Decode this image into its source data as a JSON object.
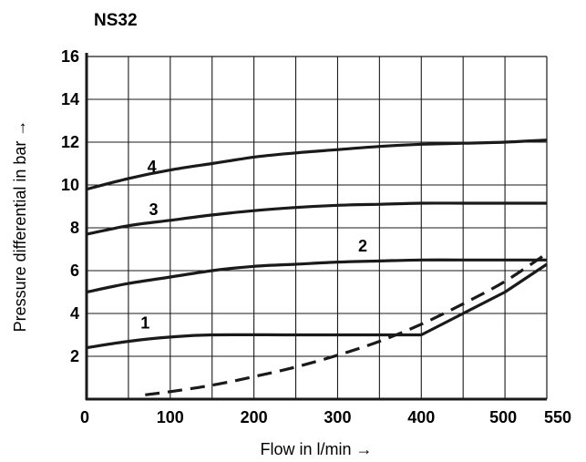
{
  "chart_data": {
    "type": "line",
    "title": "NS32",
    "xlabel": "Flow in l/min →",
    "ylabel": "Pressure differential in bar →",
    "xlim": [
      0,
      550
    ],
    "ylim": [
      0,
      16
    ],
    "xticks": [
      0,
      100,
      200,
      300,
      400,
      500,
      550
    ],
    "yticks": [
      2,
      4,
      6,
      8,
      10,
      12,
      14,
      16
    ],
    "grid": true,
    "series": [
      {
        "name": "1",
        "style": "solid",
        "points": [
          [
            0,
            2.4
          ],
          [
            50,
            2.7
          ],
          [
            100,
            2.9
          ],
          [
            150,
            3.0
          ],
          [
            250,
            3.0
          ],
          [
            350,
            3.0
          ],
          [
            400,
            3.0
          ],
          [
            450,
            4.0
          ],
          [
            500,
            5.0
          ],
          [
            550,
            6.3
          ]
        ]
      },
      {
        "name": "2",
        "style": "solid",
        "points": [
          [
            0,
            5.0
          ],
          [
            50,
            5.4
          ],
          [
            100,
            5.7
          ],
          [
            150,
            6.0
          ],
          [
            200,
            6.2
          ],
          [
            250,
            6.3
          ],
          [
            300,
            6.4
          ],
          [
            350,
            6.45
          ],
          [
            400,
            6.5
          ],
          [
            450,
            6.5
          ],
          [
            550,
            6.5
          ]
        ]
      },
      {
        "name": "3",
        "style": "solid",
        "points": [
          [
            0,
            7.7
          ],
          [
            50,
            8.1
          ],
          [
            100,
            8.35
          ],
          [
            150,
            8.6
          ],
          [
            200,
            8.8
          ],
          [
            250,
            8.95
          ],
          [
            300,
            9.05
          ],
          [
            350,
            9.1
          ],
          [
            400,
            9.15
          ],
          [
            450,
            9.15
          ],
          [
            500,
            9.15
          ],
          [
            550,
            9.15
          ]
        ]
      },
      {
        "name": "4",
        "style": "solid",
        "points": [
          [
            0,
            9.8
          ],
          [
            50,
            10.3
          ],
          [
            100,
            10.7
          ],
          [
            150,
            11.0
          ],
          [
            200,
            11.3
          ],
          [
            250,
            11.5
          ],
          [
            300,
            11.65
          ],
          [
            350,
            11.8
          ],
          [
            400,
            11.9
          ],
          [
            450,
            11.95
          ],
          [
            500,
            12.0
          ],
          [
            550,
            12.1
          ]
        ]
      },
      {
        "style": "dashed",
        "points": [
          [
            70,
            0.2
          ],
          [
            100,
            0.35
          ],
          [
            150,
            0.65
          ],
          [
            200,
            1.05
          ],
          [
            250,
            1.5
          ],
          [
            300,
            2.05
          ],
          [
            350,
            2.7
          ],
          [
            400,
            3.5
          ],
          [
            450,
            4.45
          ],
          [
            500,
            5.5
          ],
          [
            550,
            6.8
          ]
        ]
      }
    ],
    "annotations": [
      {
        "text": "1",
        "x": 70,
        "y": 3.3
      },
      {
        "text": "2",
        "x": 330,
        "y": 6.9
      },
      {
        "text": "3",
        "x": 80,
        "y": 8.6
      },
      {
        "text": "4",
        "x": 78,
        "y": 10.6
      }
    ]
  }
}
